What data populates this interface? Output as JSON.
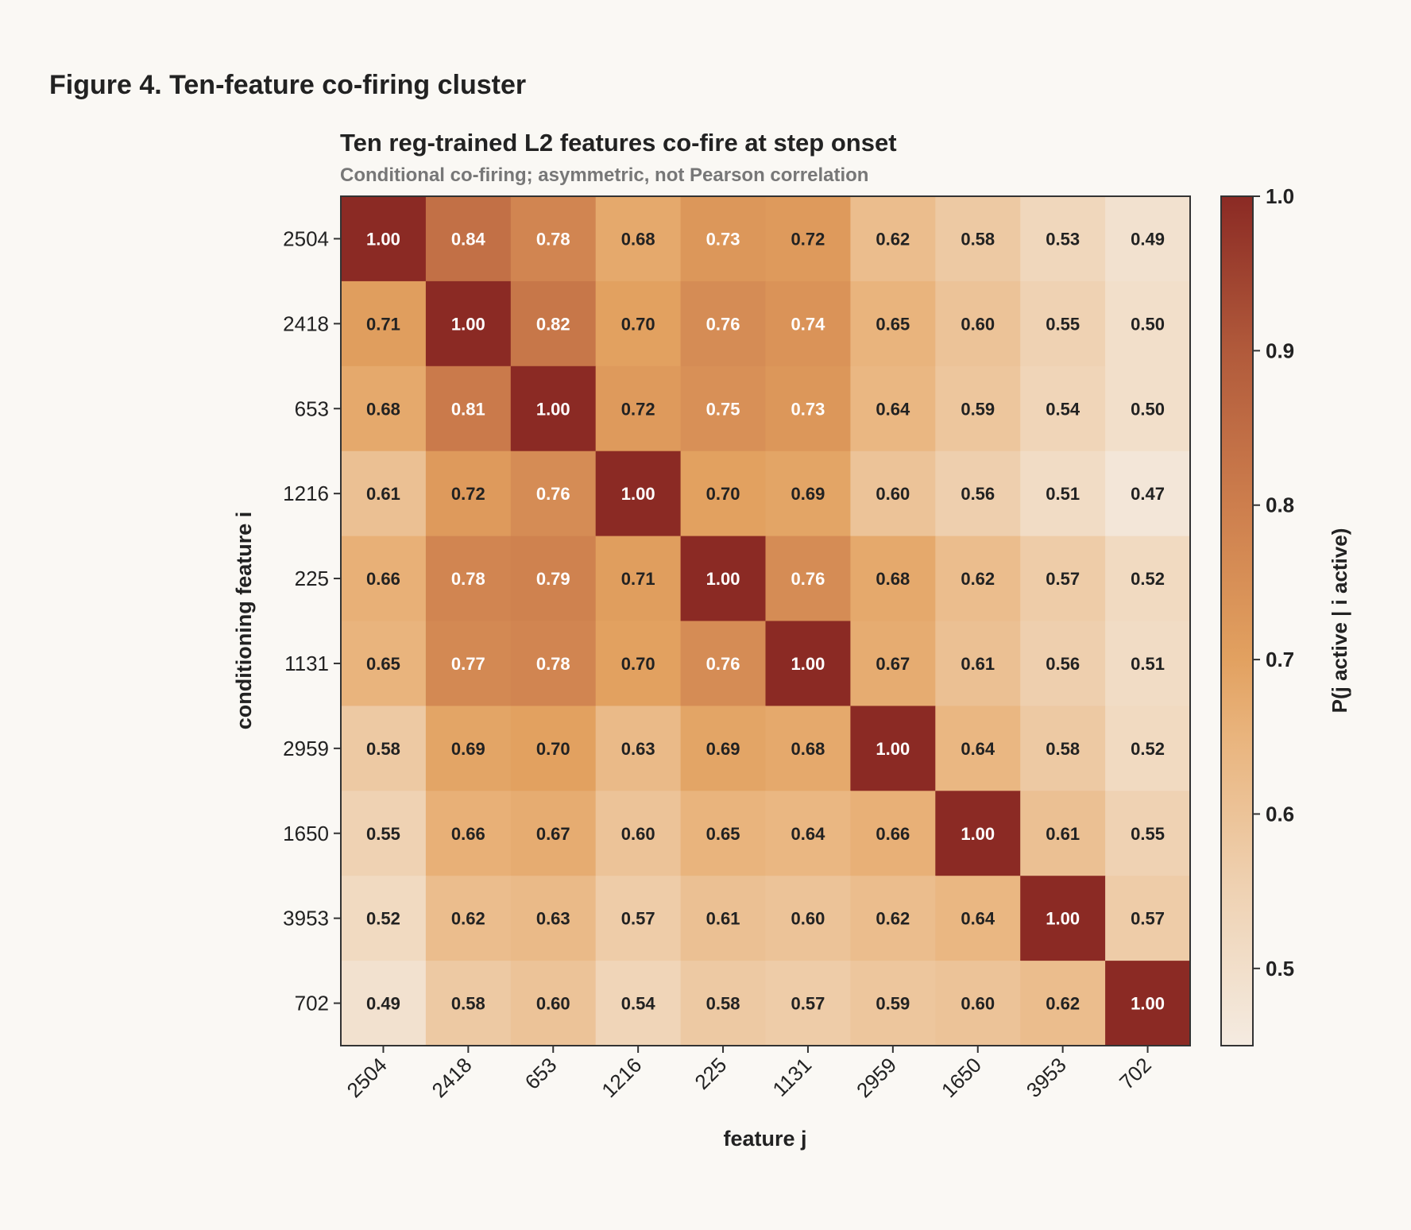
{
  "figure_title": "Figure 4. Ten-feature co-firing cluster",
  "chart_data": {
    "type": "heatmap",
    "title": "Ten reg-trained L2 features co-fire at step onset",
    "subtitle": "Conditional co-firing; asymmetric, not Pearson correlation",
    "xlabel": "feature j",
    "ylabel": "conditioning feature i",
    "x_categories": [
      "2504",
      "2418",
      "653",
      "1216",
      "225",
      "1131",
      "2959",
      "1650",
      "3953",
      "702"
    ],
    "y_categories": [
      "2504",
      "2418",
      "653",
      "1216",
      "225",
      "1131",
      "2959",
      "1650",
      "3953",
      "702"
    ],
    "values": [
      [
        1.0,
        0.84,
        0.78,
        0.68,
        0.73,
        0.72,
        0.62,
        0.58,
        0.53,
        0.49
      ],
      [
        0.71,
        1.0,
        0.82,
        0.7,
        0.76,
        0.74,
        0.65,
        0.6,
        0.55,
        0.5
      ],
      [
        0.68,
        0.81,
        1.0,
        0.72,
        0.75,
        0.73,
        0.64,
        0.59,
        0.54,
        0.5
      ],
      [
        0.61,
        0.72,
        0.76,
        1.0,
        0.7,
        0.69,
        0.6,
        0.56,
        0.51,
        0.47
      ],
      [
        0.66,
        0.78,
        0.79,
        0.71,
        1.0,
        0.76,
        0.68,
        0.62,
        0.57,
        0.52
      ],
      [
        0.65,
        0.77,
        0.78,
        0.7,
        0.76,
        1.0,
        0.67,
        0.61,
        0.56,
        0.51
      ],
      [
        0.58,
        0.69,
        0.7,
        0.63,
        0.69,
        0.68,
        1.0,
        0.64,
        0.58,
        0.52
      ],
      [
        0.55,
        0.66,
        0.67,
        0.6,
        0.65,
        0.64,
        0.66,
        1.0,
        0.61,
        0.55
      ],
      [
        0.52,
        0.62,
        0.63,
        0.57,
        0.61,
        0.6,
        0.62,
        0.64,
        1.0,
        0.57
      ],
      [
        0.49,
        0.58,
        0.6,
        0.54,
        0.58,
        0.57,
        0.59,
        0.6,
        0.62,
        1.0
      ]
    ],
    "value_format": "2 decimals",
    "colorbar": {
      "label": "P(j active | i active)",
      "range": [
        0.45,
        1.0
      ],
      "ticks": [
        0.5,
        0.6,
        0.7,
        0.8,
        0.9,
        1.0
      ],
      "tick_labels": [
        "0.5",
        "0.6",
        "0.7",
        "0.8",
        "0.9",
        "1.0"
      ],
      "color_stops": [
        {
          "value": 0.45,
          "color": "#f4ebe1"
        },
        {
          "value": 0.55,
          "color": "#efd2b3"
        },
        {
          "value": 0.65,
          "color": "#e9b47d"
        },
        {
          "value": 0.7,
          "color": "#e2a160"
        },
        {
          "value": 0.8,
          "color": "#cd7e4d"
        },
        {
          "value": 0.9,
          "color": "#b15a3b"
        },
        {
          "value": 1.0,
          "color": "#8b2a24"
        }
      ]
    },
    "grid": false,
    "legend": "colorbar right"
  }
}
